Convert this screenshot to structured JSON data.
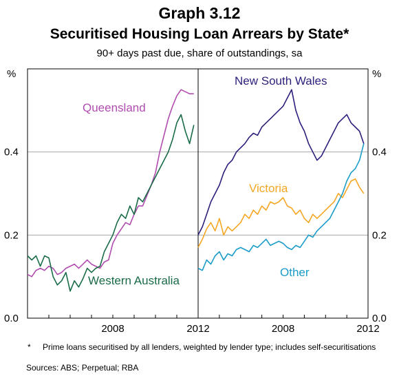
{
  "header": {
    "graph_number": "Graph 3.12",
    "title": "Securitised Housing Loan Arrears by State*",
    "subtitle": "90+ days past due, share of outstandings, sa"
  },
  "footer": {
    "marker": "*",
    "footnote": "Prime loans securitised by all lenders, weighted by lender type; includes self-securitisations",
    "sources": "Sources: ABS; Perpetual; RBA"
  },
  "colors": {
    "queensland": "#b04cb0",
    "western_australia": "#1a6b48",
    "new_south_wales": "#2a1f7a",
    "victoria": "#f5a623",
    "other": "#1a9cc8",
    "grid": "#9a9a9a"
  },
  "chart_data": {
    "type": "line",
    "y_unit": "%",
    "ylim": [
      0.0,
      0.6
    ],
    "y_ticks": [
      "0.0",
      "0.2",
      "0.4"
    ],
    "xlim": [
      2004,
      2012
    ],
    "x_ticks": [
      "2008",
      "2012"
    ],
    "grid": true,
    "panels": [
      {
        "series": [
          {
            "name": "Queensland",
            "color_key": "queensland",
            "x": [
              2004.0,
              2004.2,
              2004.4,
              2004.6,
              2004.8,
              2005.0,
              2005.2,
              2005.4,
              2005.6,
              2005.8,
              2006.0,
              2006.2,
              2006.4,
              2006.6,
              2006.8,
              2007.0,
              2007.2,
              2007.4,
              2007.6,
              2007.8,
              2008.0,
              2008.2,
              2008.4,
              2008.6,
              2008.8,
              2009.0,
              2009.2,
              2009.4,
              2009.6,
              2009.8,
              2010.0,
              2010.2,
              2010.4,
              2010.6,
              2010.8,
              2011.0,
              2011.2,
              2011.4,
              2011.6,
              2011.8
            ],
            "y": [
              0.105,
              0.1,
              0.115,
              0.12,
              0.115,
              0.125,
              0.12,
              0.105,
              0.11,
              0.12,
              0.125,
              0.13,
              0.12,
              0.13,
              0.14,
              0.13,
              0.125,
              0.12,
              0.135,
              0.14,
              0.18,
              0.2,
              0.215,
              0.23,
              0.225,
              0.25,
              0.27,
              0.27,
              0.295,
              0.32,
              0.35,
              0.4,
              0.44,
              0.48,
              0.51,
              0.535,
              0.55,
              0.545,
              0.54,
              0.54
            ]
          },
          {
            "name": "Western Australia",
            "color_key": "western_australia",
            "x": [
              2004.0,
              2004.2,
              2004.4,
              2004.6,
              2004.8,
              2005.0,
              2005.2,
              2005.4,
              2005.6,
              2005.8,
              2006.0,
              2006.2,
              2006.4,
              2006.6,
              2006.8,
              2007.0,
              2007.2,
              2007.4,
              2007.6,
              2007.8,
              2008.0,
              2008.2,
              2008.4,
              2008.6,
              2008.8,
              2009.0,
              2009.2,
              2009.4,
              2009.6,
              2009.8,
              2010.0,
              2010.2,
              2010.4,
              2010.6,
              2010.8,
              2011.0,
              2011.2,
              2011.4,
              2011.6,
              2011.8
            ],
            "y": [
              0.15,
              0.14,
              0.15,
              0.125,
              0.15,
              0.145,
              0.1,
              0.08,
              0.09,
              0.11,
              0.065,
              0.09,
              0.075,
              0.095,
              0.12,
              0.11,
              0.12,
              0.125,
              0.16,
              0.18,
              0.2,
              0.23,
              0.25,
              0.24,
              0.27,
              0.25,
              0.29,
              0.28,
              0.3,
              0.32,
              0.34,
              0.36,
              0.38,
              0.4,
              0.43,
              0.47,
              0.49,
              0.45,
              0.42,
              0.465
            ]
          }
        ],
        "annotations": [
          "Queensland",
          "Western Australia"
        ]
      },
      {
        "series": [
          {
            "name": "New South Wales",
            "color_key": "new_south_wales",
            "x": [
              2004.0,
              2004.2,
              2004.4,
              2004.6,
              2004.8,
              2005.0,
              2005.2,
              2005.4,
              2005.6,
              2005.8,
              2006.0,
              2006.2,
              2006.4,
              2006.6,
              2006.8,
              2007.0,
              2007.2,
              2007.4,
              2007.6,
              2007.8,
              2008.0,
              2008.2,
              2008.4,
              2008.6,
              2008.8,
              2009.0,
              2009.2,
              2009.4,
              2009.6,
              2009.8,
              2010.0,
              2010.2,
              2010.4,
              2010.6,
              2010.8,
              2011.0,
              2011.2,
              2011.4,
              2011.6,
              2011.8
            ],
            "y": [
              0.2,
              0.22,
              0.25,
              0.28,
              0.3,
              0.32,
              0.35,
              0.37,
              0.38,
              0.4,
              0.41,
              0.42,
              0.435,
              0.445,
              0.44,
              0.46,
              0.47,
              0.48,
              0.49,
              0.5,
              0.51,
              0.53,
              0.55,
              0.5,
              0.47,
              0.45,
              0.42,
              0.4,
              0.38,
              0.39,
              0.41,
              0.43,
              0.45,
              0.47,
              0.48,
              0.49,
              0.47,
              0.46,
              0.45,
              0.42
            ]
          },
          {
            "name": "Victoria",
            "color_key": "victoria",
            "x": [
              2004.0,
              2004.2,
              2004.4,
              2004.6,
              2004.8,
              2005.0,
              2005.2,
              2005.4,
              2005.6,
              2005.8,
              2006.0,
              2006.2,
              2006.4,
              2006.6,
              2006.8,
              2007.0,
              2007.2,
              2007.4,
              2007.6,
              2007.8,
              2008.0,
              2008.2,
              2008.4,
              2008.6,
              2008.8,
              2009.0,
              2009.2,
              2009.4,
              2009.6,
              2009.8,
              2010.0,
              2010.2,
              2010.4,
              2010.6,
              2010.8,
              2011.0,
              2011.2,
              2011.4,
              2011.6,
              2011.8
            ],
            "y": [
              0.17,
              0.19,
              0.215,
              0.23,
              0.21,
              0.24,
              0.2,
              0.22,
              0.21,
              0.22,
              0.23,
              0.25,
              0.24,
              0.26,
              0.25,
              0.27,
              0.26,
              0.28,
              0.275,
              0.28,
              0.29,
              0.27,
              0.265,
              0.25,
              0.26,
              0.24,
              0.23,
              0.25,
              0.24,
              0.25,
              0.26,
              0.27,
              0.28,
              0.3,
              0.29,
              0.31,
              0.33,
              0.335,
              0.315,
              0.3
            ]
          },
          {
            "name": "Other",
            "color_key": "other",
            "x": [
              2004.0,
              2004.2,
              2004.4,
              2004.6,
              2004.8,
              2005.0,
              2005.2,
              2005.4,
              2005.6,
              2005.8,
              2006.0,
              2006.2,
              2006.4,
              2006.6,
              2006.8,
              2007.0,
              2007.2,
              2007.4,
              2007.6,
              2007.8,
              2008.0,
              2008.2,
              2008.4,
              2008.6,
              2008.8,
              2009.0,
              2009.2,
              2009.4,
              2009.6,
              2009.8,
              2010.0,
              2010.2,
              2010.4,
              2010.6,
              2010.8,
              2011.0,
              2011.2,
              2011.4,
              2011.6,
              2011.8
            ],
            "y": [
              0.12,
              0.115,
              0.14,
              0.13,
              0.15,
              0.16,
              0.14,
              0.155,
              0.15,
              0.165,
              0.17,
              0.165,
              0.16,
              0.175,
              0.17,
              0.18,
              0.19,
              0.175,
              0.18,
              0.185,
              0.18,
              0.17,
              0.165,
              0.175,
              0.17,
              0.185,
              0.2,
              0.195,
              0.21,
              0.22,
              0.23,
              0.24,
              0.26,
              0.28,
              0.3,
              0.33,
              0.35,
              0.36,
              0.38,
              0.42
            ]
          }
        ],
        "annotations": [
          "New South Wales",
          "Victoria",
          "Other"
        ]
      }
    ]
  }
}
